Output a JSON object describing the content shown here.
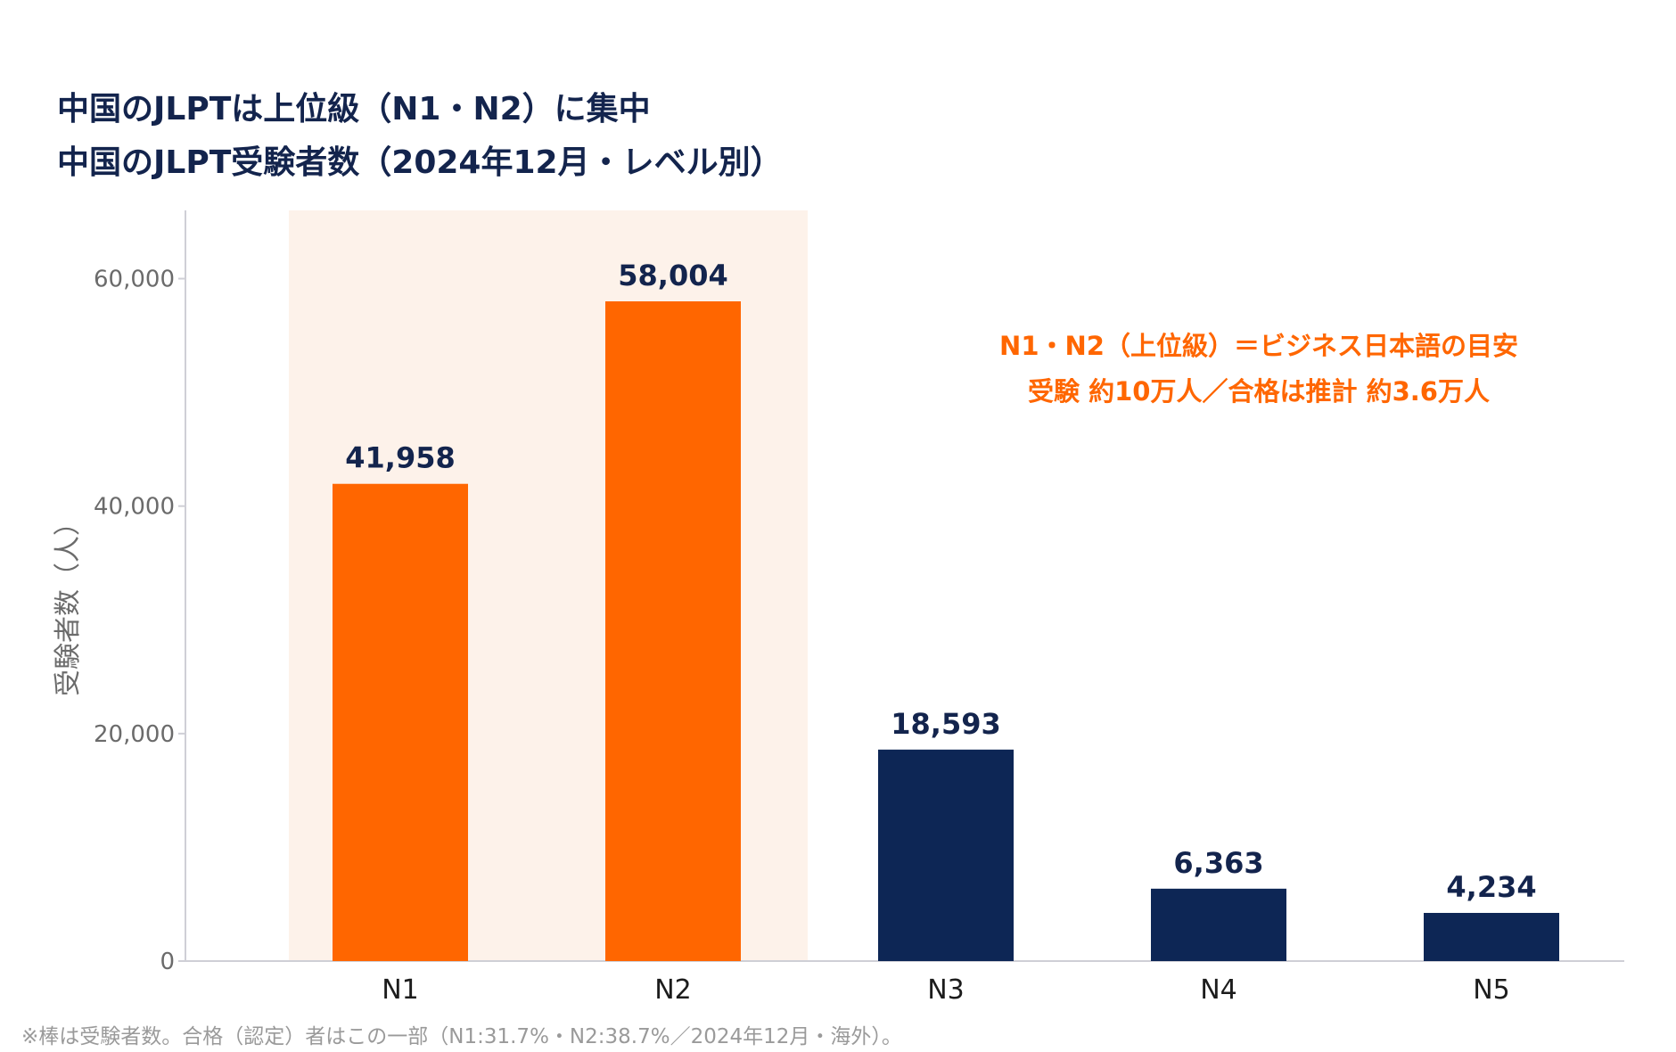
{
  "title": "中国のJLPTは上位級（N1・N2）に集中",
  "subtitle": "中国のJLPT受験者数（2024年12月・レベル別）",
  "callout": {
    "line1": "N1・N2（上位級）＝ビジネス日本語の目安",
    "line2": "受験 約10万人／合格は推計 約3.6万人"
  },
  "footnote": "※棒は受験者数。合格（認定）者はこの一部（N1:31.7%・N2:38.7%／2024年12月・海外）。",
  "colors": {
    "highlight": "#ff6600",
    "base": "#0d2655",
    "highlight_band": "#fdf2ea",
    "title": "#13244d",
    "axis_text": "#6b6b6b"
  },
  "chart_data": {
    "type": "bar",
    "categories": [
      "N1",
      "N2",
      "N3",
      "N4",
      "N5"
    ],
    "values": [
      41958,
      58004,
      18593,
      6363,
      4234
    ],
    "value_labels": [
      "41,958",
      "58,004",
      "18,593",
      "6,363",
      "4,234"
    ],
    "highlighted": [
      true,
      true,
      false,
      false,
      false
    ],
    "ylabel": "受験者数（人）",
    "xlabel": "",
    "ylim": [
      0,
      66000
    ],
    "yticks": [
      0,
      20000,
      40000,
      60000
    ],
    "ytick_labels": [
      "0",
      "20,000",
      "40,000",
      "60,000"
    ],
    "grid": false,
    "legend": "none"
  }
}
